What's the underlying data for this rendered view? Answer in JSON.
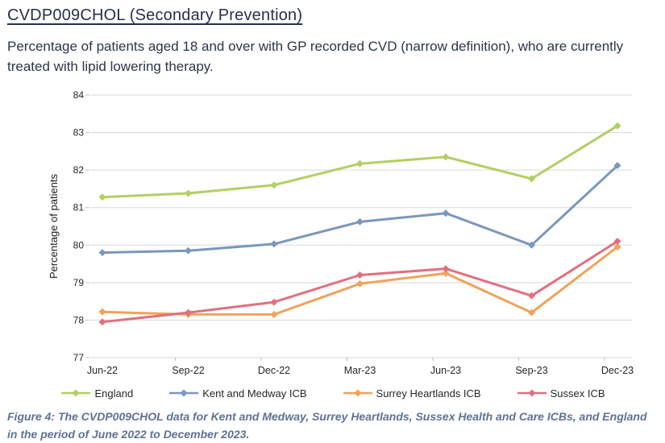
{
  "page": {
    "title": "CVDP009CHOL (Secondary Prevention)",
    "subtitle": "Percentage of patients aged 18 and over with GP recorded CVD (narrow definition), who are currently treated with lipid lowering therapy.",
    "caption": "Figure 4: The CVDP009CHOL data for Kent and Medway, Surrey Heartlands, Sussex Health and Care ICBs, and England in the period of June 2022 to December 2023."
  },
  "colors": {
    "title_text": "#25304a",
    "body_text": "#2b3547",
    "caption_text": "#5f7195",
    "axis_text": "#262626",
    "gridline": "#d9d9d9",
    "tick": "#bfbfbf"
  },
  "chart_data": {
    "type": "line",
    "title": "",
    "xlabel": "",
    "ylabel": "Percentage of patients",
    "ylim": [
      77,
      84
    ],
    "ytick_step": 1,
    "grid": true,
    "legend_position": "bottom",
    "marker": "diamond",
    "categories": [
      "Jun-22",
      "Sep-22",
      "Dec-22",
      "Mar-23",
      "Jun-23",
      "Sep-23",
      "Dec-23"
    ],
    "series": [
      {
        "name": "England",
        "color": "#b3cf63",
        "values": [
          81.28,
          81.38,
          81.6,
          82.17,
          82.35,
          81.77,
          83.18
        ]
      },
      {
        "name": "Kent and Medway ICB",
        "color": "#7a97bd",
        "values": [
          79.8,
          79.85,
          80.03,
          80.62,
          80.85,
          80.0,
          82.12
        ]
      },
      {
        "name": "Surrey Heartlands ICB",
        "color": "#f0a35a",
        "values": [
          78.22,
          78.15,
          78.15,
          78.97,
          79.25,
          78.2,
          79.95
        ]
      },
      {
        "name": "Sussex ICB",
        "color": "#e0707f",
        "values": [
          77.95,
          78.2,
          78.48,
          79.2,
          79.37,
          78.65,
          80.1
        ]
      }
    ]
  }
}
